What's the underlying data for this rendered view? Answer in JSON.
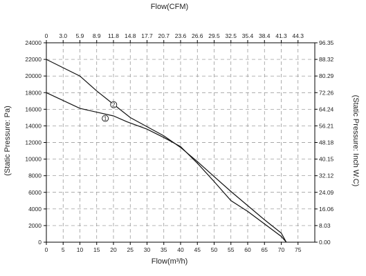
{
  "chart_data": {
    "type": "line",
    "title": "",
    "x_bottom": {
      "label": "Flow(m³/h)",
      "range": [
        0,
        75
      ],
      "ticks": [
        "0",
        "5",
        "10",
        "15",
        "20",
        "25",
        "30",
        "35",
        "40",
        "45",
        "50",
        "55",
        "60",
        "65",
        "70",
        "75"
      ]
    },
    "x_top": {
      "label": "Flow(CFM)",
      "ticks": [
        "0",
        "3.0",
        "5.9",
        "8.9",
        "11.8",
        "14.8",
        "17.7",
        "20.7",
        "23.6",
        "26.6",
        "29.5",
        "32.5",
        "35.4",
        "38.4",
        "41.3",
        "44.3"
      ]
    },
    "y_left": {
      "label": "(Static Pressure: Pa)",
      "range": [
        0,
        24000
      ],
      "ticks": [
        "0",
        "2000",
        "4000",
        "6000",
        "8000",
        "10000",
        "12000",
        "14000",
        "16000",
        "18000",
        "20000",
        "22000",
        "24000"
      ]
    },
    "y_right": {
      "label": "(Static Pressure: Inch W.C)",
      "ticks": [
        "0.00",
        "8.03",
        "16.06",
        "24.09",
        "32.12",
        "40.15",
        "48.18",
        "56.21",
        "64.24",
        "72.26",
        "80.29",
        "88.32",
        "96.35"
      ]
    },
    "grid": true,
    "series": [
      {
        "marker": "1",
        "x": [
          0,
          10,
          20,
          24,
          30,
          35,
          40,
          45,
          50,
          55,
          60,
          65,
          70,
          71.5
        ],
        "y": [
          18000,
          16100,
          15200,
          14500,
          13600,
          12600,
          11500,
          9500,
          7300,
          5000,
          3700,
          2200,
          700,
          0
        ]
      },
      {
        "marker": "2",
        "x": [
          0,
          10,
          15,
          20,
          25,
          30,
          35,
          40,
          45,
          50,
          55,
          60,
          65,
          70,
          71.5
        ],
        "y": [
          22000,
          20000,
          18200,
          16600,
          15000,
          13900,
          12800,
          11400,
          9700,
          7900,
          6100,
          4400,
          2700,
          1100,
          0
        ]
      }
    ]
  }
}
